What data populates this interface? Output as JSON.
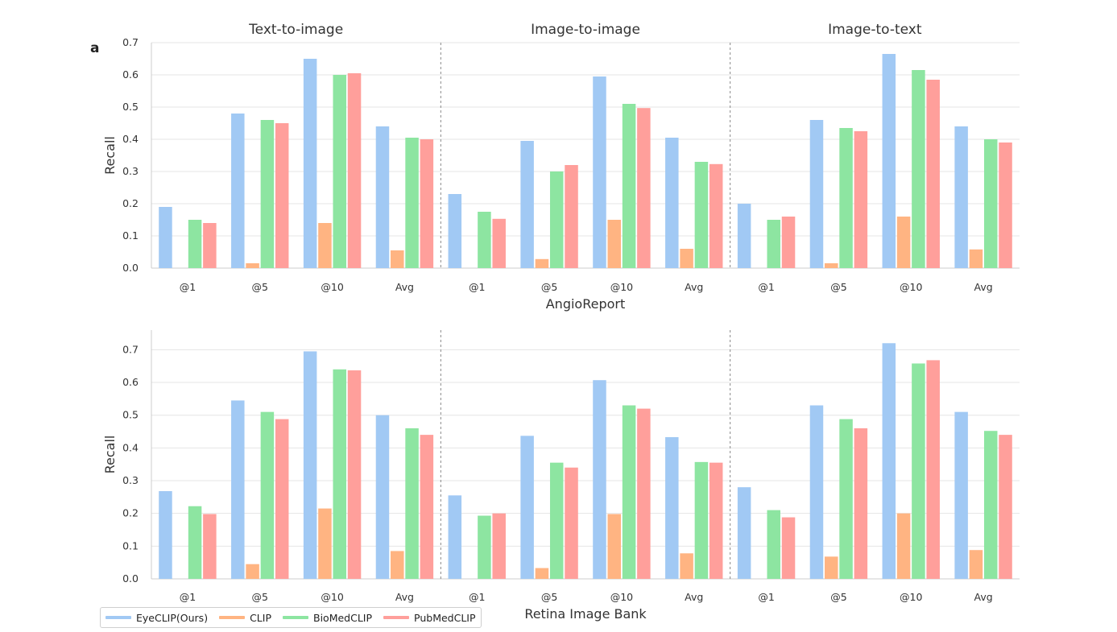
{
  "panel_label": "a",
  "legend": [
    {
      "name": "EyeCLIP(Ours)",
      "color": "#a1c9f4"
    },
    {
      "name": "CLIP",
      "color": "#ffb482"
    },
    {
      "name": "BioMedCLIP",
      "color": "#8de5a1"
    },
    {
      "name": "PubMedCLIP",
      "color": "#ff9f9b"
    }
  ],
  "chart_data": [
    {
      "type": "bar",
      "xlabel": "AngioReport",
      "ylabel": "Recall",
      "ylim": [
        0,
        0.7
      ],
      "yticks": [
        "0.0",
        "0.1",
        "0.2",
        "0.3",
        "0.4",
        "0.5",
        "0.6",
        "0.7"
      ],
      "grid": true,
      "facets": [
        {
          "title": "Text-to-image",
          "categories": [
            "@1",
            "@5",
            "@10",
            "Avg"
          ],
          "series": [
            {
              "name": "EyeCLIP(Ours)",
              "values": [
                0.19,
                0.48,
                0.65,
                0.44
              ]
            },
            {
              "name": "CLIP",
              "values": [
                0.0,
                0.015,
                0.14,
                0.055
              ]
            },
            {
              "name": "BioMedCLIP",
              "values": [
                0.15,
                0.46,
                0.6,
                0.405
              ]
            },
            {
              "name": "PubMedCLIP",
              "values": [
                0.14,
                0.45,
                0.605,
                0.4
              ]
            }
          ]
        },
        {
          "title": "Image-to-image",
          "categories": [
            "@1",
            "@5",
            "@10",
            "Avg"
          ],
          "series": [
            {
              "name": "EyeCLIP(Ours)",
              "values": [
                0.23,
                0.395,
                0.595,
                0.405
              ]
            },
            {
              "name": "CLIP",
              "values": [
                0.0,
                0.028,
                0.15,
                0.06
              ]
            },
            {
              "name": "BioMedCLIP",
              "values": [
                0.175,
                0.3,
                0.51,
                0.33
              ]
            },
            {
              "name": "PubMedCLIP",
              "values": [
                0.153,
                0.32,
                0.497,
                0.323
              ]
            }
          ]
        },
        {
          "title": "Image-to-text",
          "categories": [
            "@1",
            "@5",
            "@10",
            "Avg"
          ],
          "series": [
            {
              "name": "EyeCLIP(Ours)",
              "values": [
                0.2,
                0.46,
                0.665,
                0.44
              ]
            },
            {
              "name": "CLIP",
              "values": [
                0.0,
                0.015,
                0.16,
                0.058
              ]
            },
            {
              "name": "BioMedCLIP",
              "values": [
                0.15,
                0.435,
                0.615,
                0.4
              ]
            },
            {
              "name": "PubMedCLIP",
              "values": [
                0.16,
                0.425,
                0.585,
                0.39
              ]
            }
          ]
        }
      ]
    },
    {
      "type": "bar",
      "xlabel": "Retina Image Bank",
      "ylabel": "Recall",
      "ylim": [
        0,
        0.76
      ],
      "yticks": [
        "0.0",
        "0.1",
        "0.2",
        "0.3",
        "0.4",
        "0.5",
        "0.6",
        "0.7"
      ],
      "grid": true,
      "facets": [
        {
          "title": "",
          "categories": [
            "@1",
            "@5",
            "@10",
            "Avg"
          ],
          "series": [
            {
              "name": "EyeCLIP(Ours)",
              "values": [
                0.268,
                0.545,
                0.695,
                0.5
              ]
            },
            {
              "name": "CLIP",
              "values": [
                0.0,
                0.045,
                0.215,
                0.085
              ]
            },
            {
              "name": "BioMedCLIP",
              "values": [
                0.222,
                0.51,
                0.64,
                0.46
              ]
            },
            {
              "name": "PubMedCLIP",
              "values": [
                0.198,
                0.488,
                0.637,
                0.44
              ]
            }
          ]
        },
        {
          "title": "",
          "categories": [
            "@1",
            "@5",
            "@10",
            "Avg"
          ],
          "series": [
            {
              "name": "EyeCLIP(Ours)",
              "values": [
                0.255,
                0.437,
                0.607,
                0.433
              ]
            },
            {
              "name": "CLIP",
              "values": [
                0.0,
                0.033,
                0.198,
                0.078
              ]
            },
            {
              "name": "BioMedCLIP",
              "values": [
                0.193,
                0.355,
                0.53,
                0.357
              ]
            },
            {
              "name": "PubMedCLIP",
              "values": [
                0.2,
                0.34,
                0.52,
                0.355
              ]
            }
          ]
        },
        {
          "title": "",
          "categories": [
            "@1",
            "@5",
            "@10",
            "Avg"
          ],
          "series": [
            {
              "name": "EyeCLIP(Ours)",
              "values": [
                0.28,
                0.53,
                0.72,
                0.51
              ]
            },
            {
              "name": "CLIP",
              "values": [
                0.0,
                0.068,
                0.2,
                0.088
              ]
            },
            {
              "name": "BioMedCLIP",
              "values": [
                0.21,
                0.488,
                0.658,
                0.452
              ]
            },
            {
              "name": "PubMedCLIP",
              "values": [
                0.188,
                0.46,
                0.668,
                0.44
              ]
            }
          ]
        }
      ]
    }
  ]
}
